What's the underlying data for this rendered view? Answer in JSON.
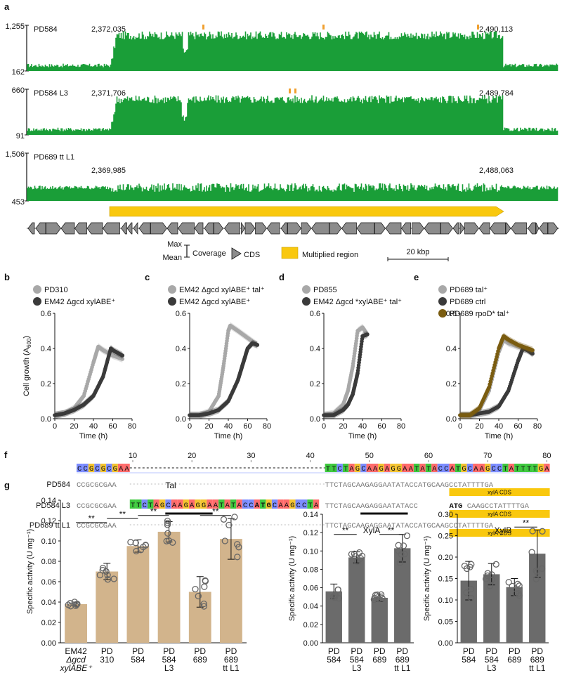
{
  "panel_letters": {
    "a": "a",
    "b": "b",
    "c": "c",
    "d": "d",
    "e": "e",
    "f": "f",
    "g": "g"
  },
  "panel_a": {
    "tracks": [
      {
        "name": "PD584",
        "max": "1,255",
        "mean": "162",
        "start": "2,372,035",
        "end": "2,490,113",
        "fold_high": 2.8
      },
      {
        "name": "PD584 L3",
        "max": "660",
        "mean": "91",
        "start": "2,371,706",
        "end": "2,489,784",
        "fold_high": 3.0
      },
      {
        "name": "PD689 tt L1",
        "max": "1,506",
        "mean": "453",
        "start": "2,369,985",
        "end": "2,488,063",
        "fold_high": 1.0
      }
    ],
    "legend": {
      "max": "Max",
      "mean": "Mean",
      "coverage": "Coverage",
      "cds": "CDS",
      "multiplied": "Multiplied region",
      "scale": "20 kbp"
    },
    "colors": {
      "coverage": "#1a9e38",
      "multiplied": "#f9c80e",
      "outlier": "#f0a030",
      "cds_fill": "#8c8c8c"
    }
  },
  "growth_panels": [
    {
      "letter": "b",
      "legend": [
        {
          "label": "PD310",
          "color": "#a8a8a8"
        },
        {
          "label": "EM42 Δgcd xylABE⁺",
          "color": "#3a3a3a"
        }
      ],
      "series": [
        {
          "color": "#a8a8a8",
          "x": [
            0,
            10,
            20,
            30,
            40,
            45,
            50,
            60,
            70
          ],
          "y": [
            0.02,
            0.03,
            0.06,
            0.13,
            0.32,
            0.41,
            0.39,
            0.36,
            0.34
          ]
        },
        {
          "color": "#3a3a3a",
          "x": [
            0,
            10,
            20,
            30,
            40,
            50,
            58,
            60,
            70
          ],
          "y": [
            0.02,
            0.03,
            0.05,
            0.08,
            0.13,
            0.24,
            0.4,
            0.39,
            0.36
          ]
        }
      ],
      "xlabel": "Time (h)",
      "ylabel": "Cell growth (A600)",
      "ymax": 0.6,
      "xmax": 80
    },
    {
      "letter": "c",
      "legend": [
        {
          "label": "EM42 Δgcd xylABE⁺ tal⁺",
          "color": "#a8a8a8"
        },
        {
          "label": "EM42 Δgcd xylABE⁺",
          "color": "#3a3a3a"
        }
      ],
      "series": [
        {
          "color": "#a8a8a8",
          "x": [
            0,
            10,
            20,
            30,
            35,
            40,
            42,
            50,
            60,
            70
          ],
          "y": [
            0.02,
            0.02,
            0.04,
            0.13,
            0.3,
            0.5,
            0.53,
            0.5,
            0.46,
            0.42
          ]
        },
        {
          "color": "#3a3a3a",
          "x": [
            0,
            10,
            20,
            30,
            40,
            50,
            55,
            60,
            65,
            70
          ],
          "y": [
            0.02,
            0.02,
            0.03,
            0.05,
            0.1,
            0.22,
            0.31,
            0.4,
            0.43,
            0.42
          ]
        }
      ],
      "xlabel": "Time (h)",
      "ylabel": "",
      "ymax": 0.6,
      "xmax": 80
    },
    {
      "letter": "d",
      "legend": [
        {
          "label": "PD855",
          "color": "#a8a8a8"
        },
        {
          "label": "EM42 Δgcd *xylABE⁺ tal⁺",
          "color": "#3a3a3a"
        }
      ],
      "series": [
        {
          "color": "#a8a8a8",
          "x": [
            0,
            10,
            20,
            25,
            30,
            35,
            40,
            45
          ],
          "y": [
            0.02,
            0.03,
            0.08,
            0.16,
            0.3,
            0.5,
            0.52,
            0.48
          ]
        },
        {
          "color": "#3a3a3a",
          "x": [
            0,
            10,
            20,
            25,
            30,
            35,
            40,
            45
          ],
          "y": [
            0.02,
            0.02,
            0.05,
            0.08,
            0.14,
            0.26,
            0.47,
            0.48
          ]
        }
      ],
      "xlabel": "Time (h)",
      "ylabel": "",
      "ymax": 0.6,
      "xmax": 80
    },
    {
      "letter": "e",
      "legend": [
        {
          "label": "PD689 tal⁺",
          "color": "#a8a8a8"
        },
        {
          "label": "PD689 ctrl",
          "color": "#3a3a3a"
        },
        {
          "label": "PD689 rpoD* tal⁺",
          "color": "#7a5c10"
        }
      ],
      "series": [
        {
          "color": "#a8a8a8",
          "x": [
            0,
            10,
            20,
            30,
            40,
            45,
            50,
            60,
            70,
            75
          ],
          "y": [
            0.02,
            0.02,
            0.05,
            0.16,
            0.38,
            0.45,
            0.43,
            0.41,
            0.39,
            0.38
          ]
        },
        {
          "color": "#3a3a3a",
          "x": [
            0,
            10,
            20,
            30,
            40,
            50,
            60,
            65,
            70,
            75
          ],
          "y": [
            0.02,
            0.02,
            0.03,
            0.04,
            0.07,
            0.16,
            0.33,
            0.4,
            0.39,
            0.37
          ]
        },
        {
          "color": "#7a5c10",
          "x": [
            0,
            10,
            20,
            30,
            40,
            45,
            50,
            60,
            70,
            75
          ],
          "y": [
            0.02,
            0.02,
            0.06,
            0.18,
            0.4,
            0.47,
            0.45,
            0.42,
            0.4,
            0.39
          ]
        }
      ],
      "xlabel": "Time (h)",
      "ylabel": "",
      "ymax": 0.6,
      "xmax": 80
    }
  ],
  "panel_f": {
    "ruler": [
      "10",
      "20",
      "30",
      "40",
      "50",
      "60",
      "70",
      "80"
    ],
    "consensus_left": "CCGCGCGAA",
    "consensus_right": "TTCTAGCAAGAGGAATATACCATGCAAGCCTATTTTGA",
    "rows": [
      {
        "label": "PD584",
        "left": "CCGCGCGAA",
        "right": "TTCTAGCAAGAGGAATATACCATGCAAGCCTATTTTGA",
        "cds": "xylA CDS"
      },
      {
        "label": "PD584 L3",
        "left": "CCGCGCGAA",
        "insert_a": "TTCTAGCAAGAGGAATATACC",
        "insert_atg": "ATG",
        "insert_b": "CAAGCCTA",
        "right_a": "TTCTAGCAAGAGGAATATACC",
        "right_atg": "ATG",
        "right_b": "CAAGCCTATTTTGA",
        "cds": "xylA CDS"
      },
      {
        "label": "PD689 tt L1",
        "left": "CCGCGCGAA",
        "right": "TTCTAGCAAGAGGAATATACCATGCAAGCCTATTTTGA",
        "cds": "xylA CDS"
      }
    ]
  },
  "chart_data": [
    {
      "type": "bar",
      "title": "Tal",
      "categories": [
        "EM42 Δgcd xylABE⁺",
        "PD 310",
        "PD 584",
        "PD 584 L3",
        "PD 689",
        "PD 689 tt L1"
      ],
      "values": [
        0.038,
        0.07,
        0.095,
        0.109,
        0.05,
        0.102
      ],
      "errors": [
        0.002,
        0.008,
        0.006,
        0.01,
        0.015,
        0.02
      ],
      "ylabel": "Specific activity (U mg⁻¹)",
      "ylim": [
        0,
        0.14
      ],
      "ticks": [
        "0.00",
        "0.02",
        "0.04",
        "0.06",
        "0.08",
        "0.10",
        "0.12",
        "0.14"
      ],
      "color": "#d2b48c",
      "significance": [
        {
          "from": 0,
          "to": 1,
          "label": "**",
          "level": 0.118
        },
        {
          "from": 1,
          "to": 2,
          "label": "**",
          "level": 0.122
        },
        {
          "from": 2,
          "to": 3,
          "label": "**",
          "level": 0.125
        },
        {
          "from": 4,
          "to": 5,
          "label": "**",
          "level": 0.125
        }
      ]
    },
    {
      "type": "bar",
      "title": "XylA",
      "categories": [
        "PD 584",
        "PD 584 L3",
        "PD 689",
        "PD 689 tt L1"
      ],
      "values": [
        0.056,
        0.093,
        0.049,
        0.103
      ],
      "errors": [
        0.008,
        0.006,
        0.004,
        0.015
      ],
      "ylabel": "Specific activity (U mg⁻¹)",
      "ylim": [
        0,
        0.14
      ],
      "ticks": [
        "0.00",
        "0.02",
        "0.04",
        "0.06",
        "0.08",
        "0.10",
        "0.12",
        "0.14"
      ],
      "color": "#6b6b6b",
      "significance": [
        {
          "from": 0,
          "to": 1,
          "label": "**",
          "level": 0.118
        },
        {
          "from": 2,
          "to": 3,
          "label": "**",
          "level": 0.118
        }
      ]
    },
    {
      "type": "bar",
      "title": "XylB",
      "categories": [
        "PD 584",
        "PD 584 L3",
        "PD 689",
        "PD 689 tt L1"
      ],
      "values": [
        0.145,
        0.16,
        0.13,
        0.208
      ],
      "errors": [
        0.045,
        0.025,
        0.02,
        0.055
      ],
      "ylabel": "",
      "ylim": [
        0,
        0.3
      ],
      "ticks": [
        "0.00",
        "0.05",
        "0.10",
        "0.15",
        "0.20",
        "0.25",
        "0.30"
      ],
      "color": "#6b6b6b",
      "significance": [
        {
          "from": 2,
          "to": 3,
          "label": "**",
          "level": 0.27
        }
      ]
    }
  ]
}
